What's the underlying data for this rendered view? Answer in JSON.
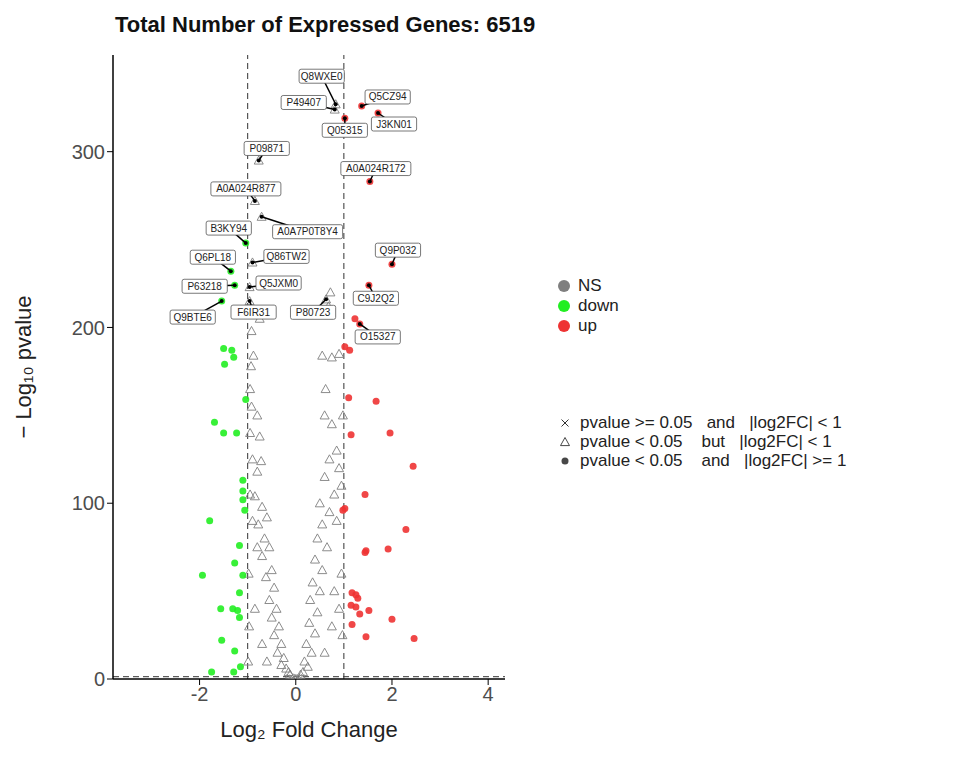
{
  "chart_data": {
    "type": "scatter",
    "title": "Total Number of Expressed Genes: 6519",
    "xlabel": "Log₂ Fold Change",
    "ylabel": "− Log₁₀ pvalue",
    "xlim": [
      -3.8,
      4.35
    ],
    "ylim": [
      0,
      355
    ],
    "xticks": [
      -2,
      0,
      2,
      4
    ],
    "yticks": [
      0,
      100,
      200,
      300
    ],
    "grid": false,
    "vlines": [
      -1,
      1
    ],
    "hline": 1.3,
    "series": [
      {
        "name": "NS",
        "color": "#7f7f7f",
        "marker": "triangle",
        "values": [
          [
            -0.77,
            295,
            "P09871"
          ],
          [
            -0.85,
            272,
            "A0A024R877"
          ],
          [
            -0.71,
            263,
            "A0A7P0T8Y4"
          ],
          [
            -0.9,
            237,
            "Q86TW2"
          ],
          [
            -0.96,
            223,
            "Q5JXM0"
          ],
          [
            -0.96,
            215,
            "F6IR31"
          ],
          [
            0.63,
            216,
            "P80723"
          ],
          [
            0.83,
            327,
            "Q8WXE0"
          ],
          [
            0.81,
            324,
            "P49407"
          ],
          [
            -0.93,
            178
          ],
          [
            -0.88,
            184
          ],
          [
            -0.92,
            155
          ],
          [
            -0.8,
            150
          ],
          [
            -0.95,
            140
          ],
          [
            -0.75,
            138
          ],
          [
            -0.9,
            125
          ],
          [
            -0.72,
            124
          ],
          [
            -0.8,
            118
          ],
          [
            -0.95,
            105
          ],
          [
            -0.85,
            104
          ],
          [
            -0.7,
            98
          ],
          [
            -0.6,
            92
          ],
          [
            -0.78,
            88
          ],
          [
            -0.65,
            80
          ],
          [
            -0.55,
            75
          ],
          [
            -0.7,
            70
          ],
          [
            -0.5,
            62
          ],
          [
            -0.62,
            58
          ],
          [
            -0.45,
            52
          ],
          [
            -0.55,
            45
          ],
          [
            -0.4,
            40
          ],
          [
            -0.5,
            35
          ],
          [
            -0.35,
            30
          ],
          [
            -0.45,
            25
          ],
          [
            -0.3,
            20
          ],
          [
            -0.38,
            15
          ],
          [
            -0.25,
            12
          ],
          [
            -0.3,
            8
          ],
          [
            -0.2,
            6
          ],
          [
            -0.15,
            4
          ],
          [
            -0.12,
            2.5
          ],
          [
            -0.98,
            60
          ],
          [
            -0.97,
            30
          ],
          [
            -0.99,
            10
          ],
          [
            -0.85,
            40
          ],
          [
            -0.7,
            20
          ],
          [
            -0.6,
            10
          ],
          [
            -0.8,
            75
          ],
          [
            -0.9,
            90
          ],
          [
            -0.75,
            205
          ],
          [
            -0.82,
            210
          ],
          [
            -0.95,
            165
          ],
          [
            -0.92,
            198
          ],
          [
            0.55,
            184
          ],
          [
            0.75,
            183
          ],
          [
            0.62,
            165
          ],
          [
            0.9,
            185
          ],
          [
            0.6,
            150
          ],
          [
            0.75,
            145
          ],
          [
            0.85,
            130
          ],
          [
            0.7,
            125
          ],
          [
            0.9,
            120
          ],
          [
            0.6,
            115
          ],
          [
            0.8,
            105
          ],
          [
            0.5,
            100
          ],
          [
            0.7,
            95
          ],
          [
            0.55,
            88
          ],
          [
            0.85,
            90
          ],
          [
            0.45,
            80
          ],
          [
            0.65,
            75
          ],
          [
            0.4,
            68
          ],
          [
            0.55,
            62
          ],
          [
            0.35,
            55
          ],
          [
            0.5,
            50
          ],
          [
            0.3,
            45
          ],
          [
            0.45,
            38
          ],
          [
            0.28,
            32
          ],
          [
            0.4,
            26
          ],
          [
            0.22,
            20
          ],
          [
            0.33,
            15
          ],
          [
            0.18,
            10
          ],
          [
            0.25,
            7
          ],
          [
            0.15,
            4
          ],
          [
            0.1,
            2.5
          ],
          [
            0.95,
            60
          ],
          [
            0.97,
            25
          ],
          [
            0.9,
            40
          ],
          [
            0.75,
            30
          ],
          [
            0.6,
            15
          ],
          [
            0.8,
            50
          ],
          [
            0.72,
            220
          ],
          [
            0.68,
            212
          ],
          [
            0.98,
            150
          ],
          [
            0.95,
            110
          ]
        ]
      },
      {
        "name": "NS",
        "color": "#7f7f7f",
        "marker": "cross",
        "values": [
          [
            -0.05,
            0.5
          ],
          [
            0.05,
            0.8
          ],
          [
            0.02,
            1.0
          ],
          [
            -0.08,
            0.3
          ],
          [
            0.1,
            0.6
          ],
          [
            -0.12,
            0.9
          ]
        ]
      },
      {
        "name": "down",
        "color": "#22ee22",
        "marker": "circle",
        "values": [
          [
            -1.04,
            248,
            "B3KY94"
          ],
          [
            -1.35,
            232,
            "Q6PL18"
          ],
          [
            -1.27,
            224,
            "P63218"
          ],
          [
            -1.54,
            215,
            "Q9BTE6"
          ],
          [
            -1.5,
            188
          ],
          [
            -1.33,
            187
          ],
          [
            -1.29,
            183
          ],
          [
            -1.48,
            179
          ],
          [
            -1.69,
            146
          ],
          [
            -1.5,
            140
          ],
          [
            -1.23,
            140
          ],
          [
            -1.04,
            159
          ],
          [
            -1.1,
            113
          ],
          [
            -1.1,
            107
          ],
          [
            -1.1,
            102
          ],
          [
            -1.06,
            96
          ],
          [
            -1.79,
            90
          ],
          [
            -1.17,
            76
          ],
          [
            -1.27,
            66
          ],
          [
            -1.94,
            59
          ],
          [
            -1.1,
            59
          ],
          [
            -1.17,
            49
          ],
          [
            -1.31,
            40
          ],
          [
            -1.21,
            39
          ],
          [
            -1.17,
            35
          ],
          [
            -1.56,
            40
          ],
          [
            -1.54,
            22
          ],
          [
            -1.27,
            16
          ],
          [
            -1.75,
            4
          ],
          [
            -1.29,
            4
          ],
          [
            -1.15,
            7
          ]
        ]
      },
      {
        "name": "up",
        "color": "#ee3333",
        "marker": "circle",
        "values": [
          [
            1.02,
            319,
            "Q05315"
          ],
          [
            1.37,
            326,
            "Q5CZ94"
          ],
          [
            1.71,
            322,
            "J3KN01"
          ],
          [
            1.54,
            283,
            "A0A024R172"
          ],
          [
            2.0,
            236,
            "Q9P032"
          ],
          [
            1.52,
            224,
            "C9J2Q2"
          ],
          [
            1.33,
            202,
            "O15327"
          ],
          [
            1.23,
            205
          ],
          [
            1.02,
            189
          ],
          [
            1.12,
            187
          ],
          [
            1.1,
            160
          ],
          [
            1.67,
            158
          ],
          [
            1.15,
            139
          ],
          [
            1.96,
            140
          ],
          [
            1.44,
            105
          ],
          [
            2.44,
            121
          ],
          [
            1.46,
            73
          ],
          [
            1.44,
            72
          ],
          [
            1.92,
            74
          ],
          [
            2.29,
            85
          ],
          [
            1.02,
            97
          ],
          [
            0.98,
            96
          ],
          [
            2.0,
            34
          ],
          [
            2.46,
            23
          ],
          [
            1.46,
            24
          ],
          [
            1.52,
            39
          ],
          [
            1.29,
            46
          ],
          [
            1.17,
            49
          ],
          [
            1.25,
            48
          ],
          [
            1.25,
            41
          ],
          [
            1.17,
            31
          ],
          [
            1.33,
            37
          ],
          [
            1.15,
            42
          ]
        ]
      }
    ],
    "shape_legend": [
      {
        "marker": "cross",
        "label": "pvalue >= 0.05   and   |log2FC| < 1"
      },
      {
        "marker": "triangle",
        "label": "pvalue < 0.05    but   |log2FC| < 1"
      },
      {
        "marker": "circle",
        "label": "pvalue < 0.05    and   |log2FC| >= 1"
      }
    ]
  }
}
